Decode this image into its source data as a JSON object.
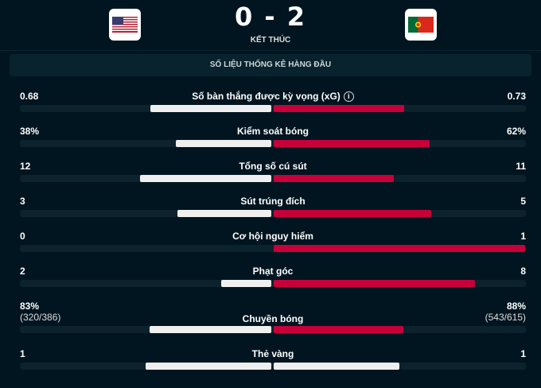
{
  "match": {
    "score": "0 - 2",
    "status": "KẾT THÚC",
    "home_flag": "usa-flag-icon",
    "away_flag": "portugal-flag-icon"
  },
  "section_title": "SỐ LIỆU THỐNG KÊ HÀNG ĐẦU",
  "colors": {
    "home": "#efefef",
    "away": "#c8003a",
    "background": "#011520"
  },
  "stats": [
    {
      "label": "Số bàn thắng được kỳ vọng (xG)",
      "home": "0.68",
      "away": "0.73",
      "home_value": 0.68,
      "away_value": 0.73,
      "info": true
    },
    {
      "label": "Kiểm soát bóng",
      "home": "38%",
      "away": "62%",
      "home_value": 38,
      "away_value": 62
    },
    {
      "label": "Tổng số cú sút",
      "home": "12",
      "away": "11",
      "home_value": 12,
      "away_value": 11
    },
    {
      "label": "Sút trúng đích",
      "home": "3",
      "away": "5",
      "home_value": 3,
      "away_value": 5
    },
    {
      "label": "Cơ hội nguy hiểm",
      "home": "0",
      "away": "1",
      "home_value": 0,
      "away_value": 1
    },
    {
      "label": "Phạt góc",
      "home": "2",
      "away": "8",
      "home_value": 2,
      "away_value": 8
    },
    {
      "label": "Chuyền bóng",
      "home": "83%",
      "away": "88%",
      "home_sub": "(320/386)",
      "away_sub": "(543/615)",
      "home_value": 83,
      "away_value": 88
    },
    {
      "label": "Thẻ vàng",
      "home": "1",
      "away": "1",
      "home_value": 1,
      "away_value": 1
    }
  ]
}
